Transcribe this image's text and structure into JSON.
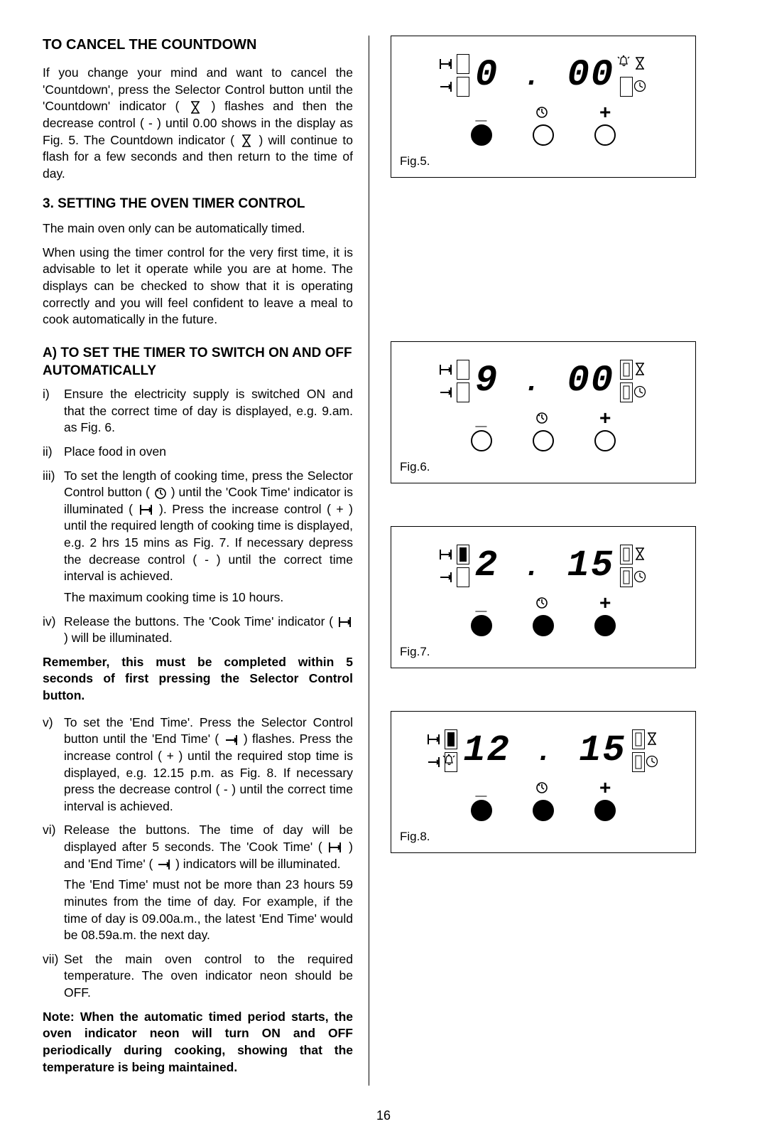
{
  "left": {
    "h_cancel": "TO CANCEL THE COUNTDOWN",
    "p_cancel": "If you change your mind and want to cancel the 'Countdown', press the Selector Control button until the 'Countdown' indicator ( {HOURGLASS} ) flashes and then the decrease control ( - ) until 0.00 shows in the display as Fig. 5.  The Countdown indicator ( {HOURGLASS} ) will continue to flash for a few seconds and then return to the time of day.",
    "h_setting": "3.  SETTING  THE  OVEN  TIMER CONTROL",
    "p_main_oven": "The main oven only can be automatically timed.",
    "p_first_time": "When using the timer control for the very first time, it is advisable to let it operate while you are at home. The displays can be checked to show that it is operating correctly and you will feel confident to leave a meal to cook automatically in the future.",
    "h_a": "A)  TO  SET  THE  TIMER  TO  SWITCH  ON AND OFF AUTOMATICALLY",
    "items": {
      "i": {
        "num": "i)",
        "text": "Ensure the electricity supply is switched ON and that the correct time of day is displayed, e.g. 9.am. as Fig. 6."
      },
      "ii": {
        "num": "ii)",
        "text": "Place food in oven"
      },
      "iii": {
        "num": "iii)",
        "text": "To set the length of cooking time, press the Selector Control button ( {CLOCK} ) until the 'Cook Time' indicator is illuminated ( {COOKT} ).  Press the increase control ( + ) until the required length of cooking time is displayed, e.g. 2 hrs 15 mins as Fig. 7.  If necessary depress the decrease control ( - ) until the correct time interval is achieved.",
        "text2": "The maximum cooking time is 10 hours."
      },
      "iv": {
        "num": "iv)",
        "text": "Release the buttons. The 'Cook Time' indicator ( {COOKT} ) will be illuminated."
      }
    },
    "remember": "Remember, this must be completed within 5 seconds of first pressing the Selector Control button.",
    "items2": {
      "v": {
        "num": "v)",
        "text": "To set the 'End Time'.  Press the Selector Control button until the 'End Time' ( {ENDT} ) flashes.  Press the increase control ( + ) until the required stop time is displayed, e.g. 12.15 p.m. as Fig. 8.  If necessary press the decrease control ( - ) until the correct time interval is achieved."
      },
      "vi": {
        "num": "vi)",
        "text": "Release the buttons.  The time of day will be displayed after 5 seconds. The 'Cook Time' ( {COOKT} ) and 'End Time' ( {ENDT} ) indicators will be illuminated.",
        "text2": "The 'End Time' must not be more than 23 hours 59 minutes from the time of day.  For example, if the time of day is 09.00a.m., the latest 'End Time' would be 08.59a.m. the next day."
      },
      "vii": {
        "num": "vii)",
        "text": "Set the main oven control to the required temperature.  The oven indicator neon should be OFF."
      }
    },
    "note": "Note:  When the automatic timed period starts, the oven indicator neon will turn ON and OFF periodically during cooking, showing that the temperature is being maintained."
  },
  "figs": {
    "f5": {
      "label": "Fig.5.",
      "display": "0.00",
      "left1": "empty",
      "left2": "empty",
      "right1": "bell",
      "right2": "empty",
      "btn1": "filled",
      "btn2": "open",
      "btn3": "open"
    },
    "f6": {
      "label": "Fig.6.",
      "display": "9.00",
      "left1": "empty",
      "left2": "empty",
      "right1": "mark",
      "right2": "mark",
      "btn1": "open",
      "btn2": "open",
      "btn3": "open"
    },
    "f7": {
      "label": "Fig.7.",
      "display": "2.15",
      "left1": "filled",
      "left2": "empty",
      "right1": "mark",
      "right2": "mark",
      "btn1": "filled",
      "btn2": "filled",
      "btn3": "filled"
    },
    "f8": {
      "label": "Fig.8.",
      "display": "12.15",
      "left1": "filled",
      "left2": "bell2",
      "right1": "mark",
      "right2": "mark",
      "btn1": "filled",
      "btn2": "filled",
      "btn3": "filled"
    }
  },
  "pagenum": "16"
}
